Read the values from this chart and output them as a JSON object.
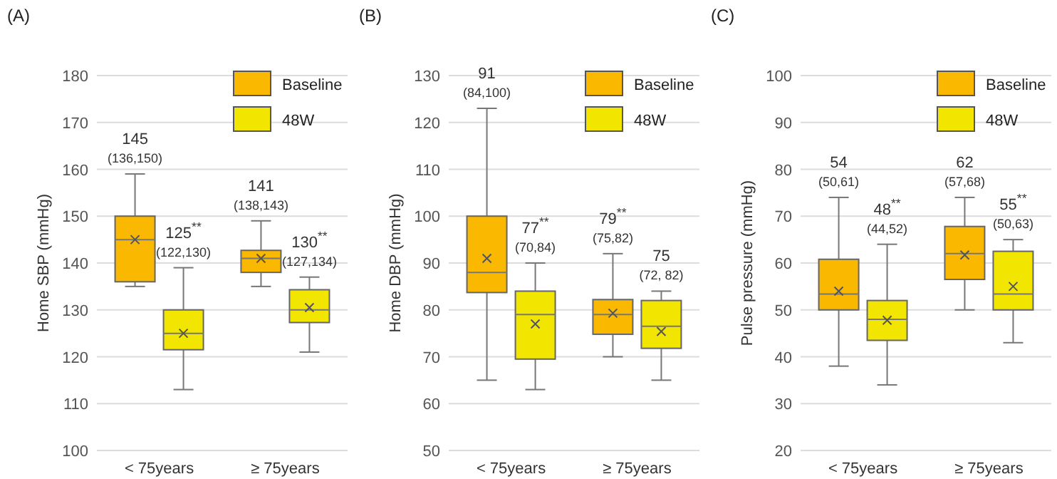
{
  "chart_data": [
    {
      "type": "box",
      "title": "(A)",
      "ylabel": "Home SBP (mmHg)",
      "categories": [
        "< 75years",
        "≥ 75years"
      ],
      "ylim": [
        100,
        180
      ],
      "yticks": [
        100,
        110,
        120,
        130,
        140,
        150,
        160,
        170,
        180
      ],
      "grid": "y",
      "legend": "top right",
      "marker": "cross",
      "series": [
        {
          "name": "Baseline",
          "color": "#fbb800",
          "boxes": [
            {
              "low": 135,
              "q1": 136,
              "median": 145,
              "q3": 150,
              "high": 159,
              "mean": 145
            },
            {
              "low": 135,
              "q1": 138,
              "median": 141,
              "q3": 142.7,
              "high": 149,
              "mean": 141
            }
          ]
        },
        {
          "name": "48W",
          "color": "#f2e600",
          "boxes": [
            {
              "low": 113,
              "q1": 121.5,
              "median": 125,
              "q3": 130,
              "high": 139,
              "mean": 125
            },
            {
              "low": 121,
              "q1": 127.3,
              "median": 130,
              "q3": 134.3,
              "high": 137,
              "mean": 130.5
            }
          ]
        }
      ],
      "annotations": [
        "145\n(136,150)",
        "125$^{**}$\n(122,130)",
        "141\n(138,143)",
        "130$^{**}$\n(127,134)"
      ]
    },
    {
      "type": "box",
      "title": "(B)",
      "ylabel": "Home DBP (mmHg)",
      "categories": [
        "< 75years",
        "≥ 75years"
      ],
      "ylim": [
        50,
        130
      ],
      "yticks": [
        50,
        60,
        70,
        80,
        90,
        100,
        110,
        120,
        130
      ],
      "grid": "y",
      "legend": "top right",
      "marker": "cross",
      "series": [
        {
          "name": "Baseline",
          "color": "#fbb800",
          "boxes": [
            {
              "low": 65,
              "q1": 83.7,
              "median": 88,
              "q3": 100,
              "high": 123,
              "mean": 91
            },
            {
              "low": 70,
              "q1": 74.8,
              "median": 79,
              "q3": 82.2,
              "high": 92,
              "mean": 79.3
            }
          ]
        },
        {
          "name": "48W",
          "color": "#f2e600",
          "boxes": [
            {
              "low": 63,
              "q1": 69.5,
              "median": 79,
              "q3": 84,
              "high": 90,
              "mean": 77
            },
            {
              "low": 65,
              "q1": 71.8,
              "median": 76.5,
              "q3": 82,
              "high": 84,
              "mean": 75.4
            }
          ]
        }
      ],
      "annotations": [
        "91\n(84,100)",
        "77$^{**}$\n(70,84)",
        "79$^{**}$\n(75,82)",
        "75\n(72, 82)"
      ]
    },
    {
      "type": "box",
      "title": "(C)",
      "ylabel": "Pulse pressure (mmHg)",
      "categories": [
        "< 75years",
        "≥ 75years"
      ],
      "ylim": [
        20,
        100
      ],
      "yticks": [
        20,
        30,
        40,
        50,
        60,
        70,
        80,
        90,
        100
      ],
      "grid": "y",
      "legend": "top right",
      "marker": "cross",
      "series": [
        {
          "name": "Baseline",
          "color": "#fbb800",
          "boxes": [
            {
              "low": 38,
              "q1": 50,
              "median": 53.4,
              "q3": 60.8,
              "high": 74,
              "mean": 54
            },
            {
              "low": 50,
              "q1": 56.5,
              "median": 62,
              "q3": 67.8,
              "high": 74,
              "mean": 61.7
            }
          ]
        },
        {
          "name": "48W",
          "color": "#f2e600",
          "boxes": [
            {
              "low": 34,
              "q1": 43.5,
              "median": 48,
              "q3": 52,
              "high": 64,
              "mean": 47.8
            },
            {
              "low": 43,
              "q1": 50,
              "median": 53.4,
              "q3": 62.5,
              "high": 65,
              "mean": 55
            }
          ]
        }
      ],
      "annotations": [
        "54\n(50,61)",
        "48$^{**}$\n(44,52)",
        "62\n(57,68)",
        "55$^{**}$\n(50,63)"
      ]
    }
  ]
}
